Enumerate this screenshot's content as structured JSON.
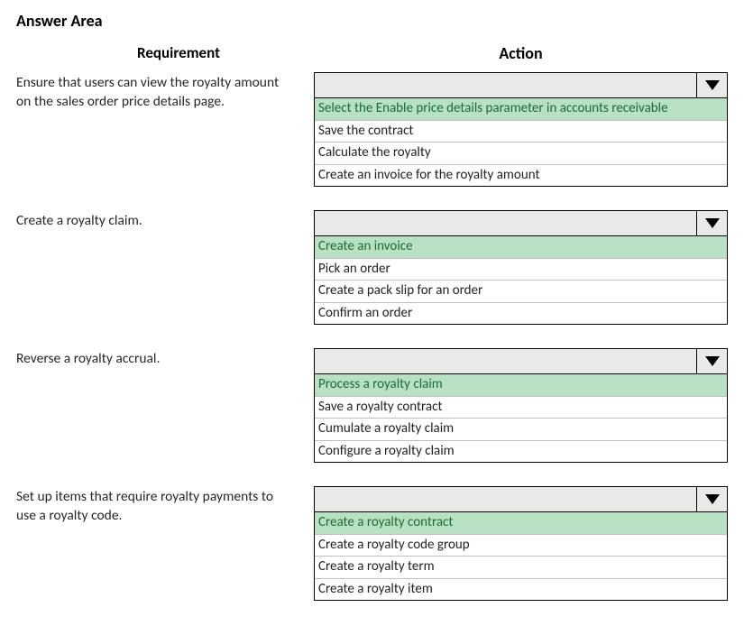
{
  "title": "Answer Area",
  "headers": {
    "left": "Requirement",
    "right": "Action"
  },
  "rows": [
    {
      "requirement": "Ensure that users can view the royalty amount on the sales order price details page.",
      "options": [
        "Select the Enable price details parameter in accounts receivable",
        "Save the contract",
        "Calculate the royalty",
        "Create an invoice for the royalty amount"
      ],
      "selected_index": 0
    },
    {
      "requirement": "Create a royalty claim.",
      "options": [
        "Create an invoice",
        "Pick an order",
        "Create a pack slip for an order",
        "Confirm an order"
      ],
      "selected_index": 0
    },
    {
      "requirement": "Reverse a royalty accrual.",
      "options": [
        "Process a royalty claim",
        "Save a royalty contract",
        "Cumulate a royalty claim",
        "Configure a royalty claim"
      ],
      "selected_index": 0
    },
    {
      "requirement": "Set up items that require royalty payments to use a royalty code.",
      "options": [
        "Create a royalty contract",
        "Create a royalty code group",
        "Create a royalty term",
        "Create a royalty item"
      ],
      "selected_index": 0
    }
  ],
  "colors": {
    "selected_bg": "#b8e0c2",
    "selected_text": "#1e6b3a",
    "dropdown_head_bg": "#e9e9e9",
    "border": "#000000",
    "option_border": "#bfbfbf"
  },
  "fonts": {
    "title_size_pt": 18,
    "header_size_pt": 17,
    "body_size_pt": 15
  }
}
